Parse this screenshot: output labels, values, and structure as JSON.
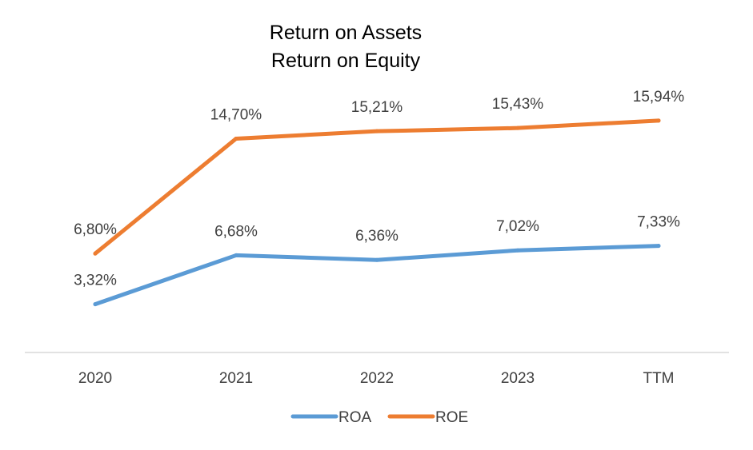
{
  "chart_data": {
    "type": "line",
    "title_lines": [
      "Return on Assets",
      "Return on Equity"
    ],
    "categories": [
      "2020",
      "2021",
      "2022",
      "2023",
      "TTM"
    ],
    "series": [
      {
        "name": "ROA",
        "color": "#5B9BD5",
        "values": [
          3.32,
          6.68,
          6.36,
          7.02,
          7.33
        ],
        "labels": [
          "3,32%",
          "6,68%",
          "6,36%",
          "7,02%",
          "7,33%"
        ]
      },
      {
        "name": "ROE",
        "color": "#ED7D31",
        "values": [
          6.8,
          14.7,
          15.21,
          15.43,
          15.94
        ],
        "labels": [
          "6,80%",
          "14,70%",
          "15,21%",
          "15,43%",
          "15,94%"
        ]
      }
    ],
    "ylim": [
      0,
      18
    ],
    "grid": false,
    "legend": "bottom"
  }
}
